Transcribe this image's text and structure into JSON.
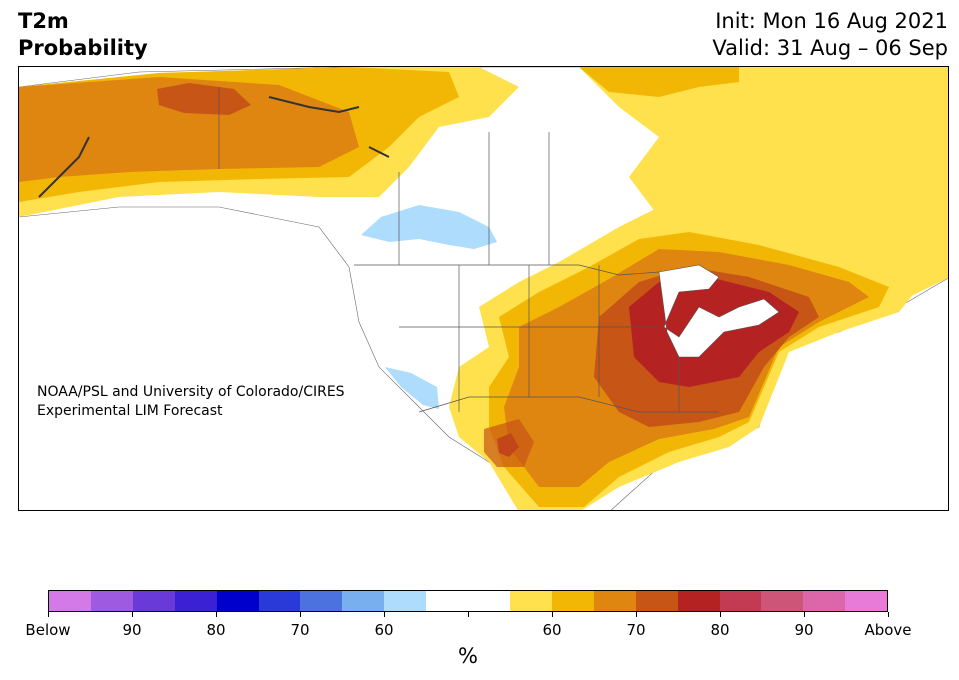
{
  "header": {
    "title_line1": "T2m",
    "title_line2": "Probability",
    "init_line": "Init: Mon 16 Aug 2021",
    "valid_line": "Valid: 31 Aug – 06 Sep"
  },
  "map": {
    "credit_line1": "NOAA/PSL and University of Colorado/CIRES",
    "credit_line2": "Experimental LIM Forecast",
    "region": "North America",
    "categories": {
      "above_50_60": "#ffe14d",
      "above_60_65": "#f2b705",
      "above_65_70": "#de8610",
      "above_70_75": "#c75516",
      "above_75_80": "#b52222",
      "below_55_60": "#addcfc"
    }
  },
  "colorbar": {
    "unit_label": "%",
    "colors": [
      "#d37ae8",
      "#9e5ae0",
      "#6a3ad9",
      "#3a22d4",
      "#0000cc",
      "#2a3ad8",
      "#4c72e0",
      "#78b0ef",
      "#addcfc",
      "#ffffff",
      "#ffffff",
      "#ffe14d",
      "#f2b705",
      "#de8610",
      "#c75516",
      "#b52222",
      "#c23b52",
      "#cc5578",
      "#dd66aa",
      "#e87ad8"
    ],
    "tick_labels": [
      "Below",
      "90",
      "80",
      "70",
      "60",
      "",
      "60",
      "70",
      "80",
      "90",
      "Above"
    ]
  }
}
